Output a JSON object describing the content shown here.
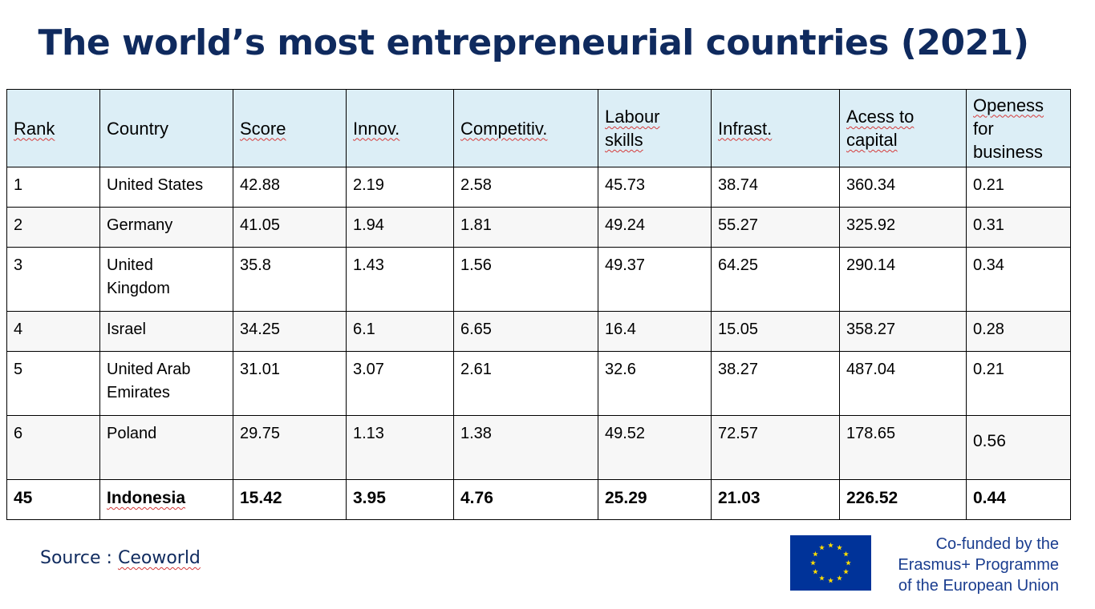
{
  "title": "The world’s most entrepreneurial countries (2021)",
  "table": {
    "headers": [
      [
        "Rank"
      ],
      [
        "Country"
      ],
      [
        "Score"
      ],
      [
        "Innov."
      ],
      [
        "Competitiv."
      ],
      [
        "Labour",
        "skills"
      ],
      [
        "Infrast."
      ],
      [
        "Acess to",
        "capital"
      ],
      [
        "Openess",
        "for",
        "business"
      ]
    ],
    "rows": [
      {
        "cells": [
          [
            "1"
          ],
          [
            "United States"
          ],
          [
            "42.88"
          ],
          [
            "2.19"
          ],
          [
            "2.58"
          ],
          [
            "45.73"
          ],
          [
            "38.74"
          ],
          [
            "360.34"
          ],
          [
            "0.21"
          ]
        ]
      },
      {
        "cells": [
          [
            "2"
          ],
          [
            "Germany"
          ],
          [
            "41.05"
          ],
          [
            "1.94"
          ],
          [
            "1.81"
          ],
          [
            "49.24"
          ],
          [
            "55.27"
          ],
          [
            "325.92"
          ],
          [
            "0.31"
          ]
        ]
      },
      {
        "cells": [
          [
            "3"
          ],
          [
            "United",
            "Kingdom"
          ],
          [
            "35.8"
          ],
          [
            "1.43"
          ],
          [
            "1.56"
          ],
          [
            "49.37"
          ],
          [
            "64.25"
          ],
          [
            "290.14"
          ],
          [
            "0.34"
          ]
        ]
      },
      {
        "cells": [
          [
            "4"
          ],
          [
            "Israel"
          ],
          [
            "34.25"
          ],
          [
            "6.1"
          ],
          [
            "6.65"
          ],
          [
            "16.4"
          ],
          [
            "15.05"
          ],
          [
            "358.27"
          ],
          [
            "0.28"
          ]
        ]
      },
      {
        "cells": [
          [
            "5"
          ],
          [
            "United Arab",
            "Emirates"
          ],
          [
            "31.01"
          ],
          [
            "3.07"
          ],
          [
            "2.61"
          ],
          [
            "32.6"
          ],
          [
            "38.27"
          ],
          [
            "487.04"
          ],
          [
            "0.21"
          ]
        ]
      },
      {
        "cells": [
          [
            "6"
          ],
          [
            "Poland"
          ],
          [
            "29.75"
          ],
          [
            "1.13"
          ],
          [
            "1.38"
          ],
          [
            "49.52"
          ],
          [
            "72.57"
          ],
          [
            "178.65"
          ],
          [
            "0.56"
          ]
        ]
      },
      {
        "cells": [
          [
            "45"
          ],
          [
            "Indonesia"
          ],
          [
            "15.42"
          ],
          [
            "3.95"
          ],
          [
            "4.76"
          ],
          [
            "25.29"
          ],
          [
            "21.03"
          ],
          [
            "226.52"
          ],
          [
            "0.44"
          ]
        ]
      }
    ]
  },
  "source": {
    "prefix": "Source : ",
    "name": "Ceoworld"
  },
  "footer": {
    "eu_lines": [
      "Co-funded by the",
      "Erasmus+ Programme",
      "of the European Union"
    ]
  },
  "colors": {
    "title": "#0f2a5e",
    "header_bg": "#dceef6",
    "eu_blue": "#003399",
    "eu_star": "#ffdd00"
  }
}
